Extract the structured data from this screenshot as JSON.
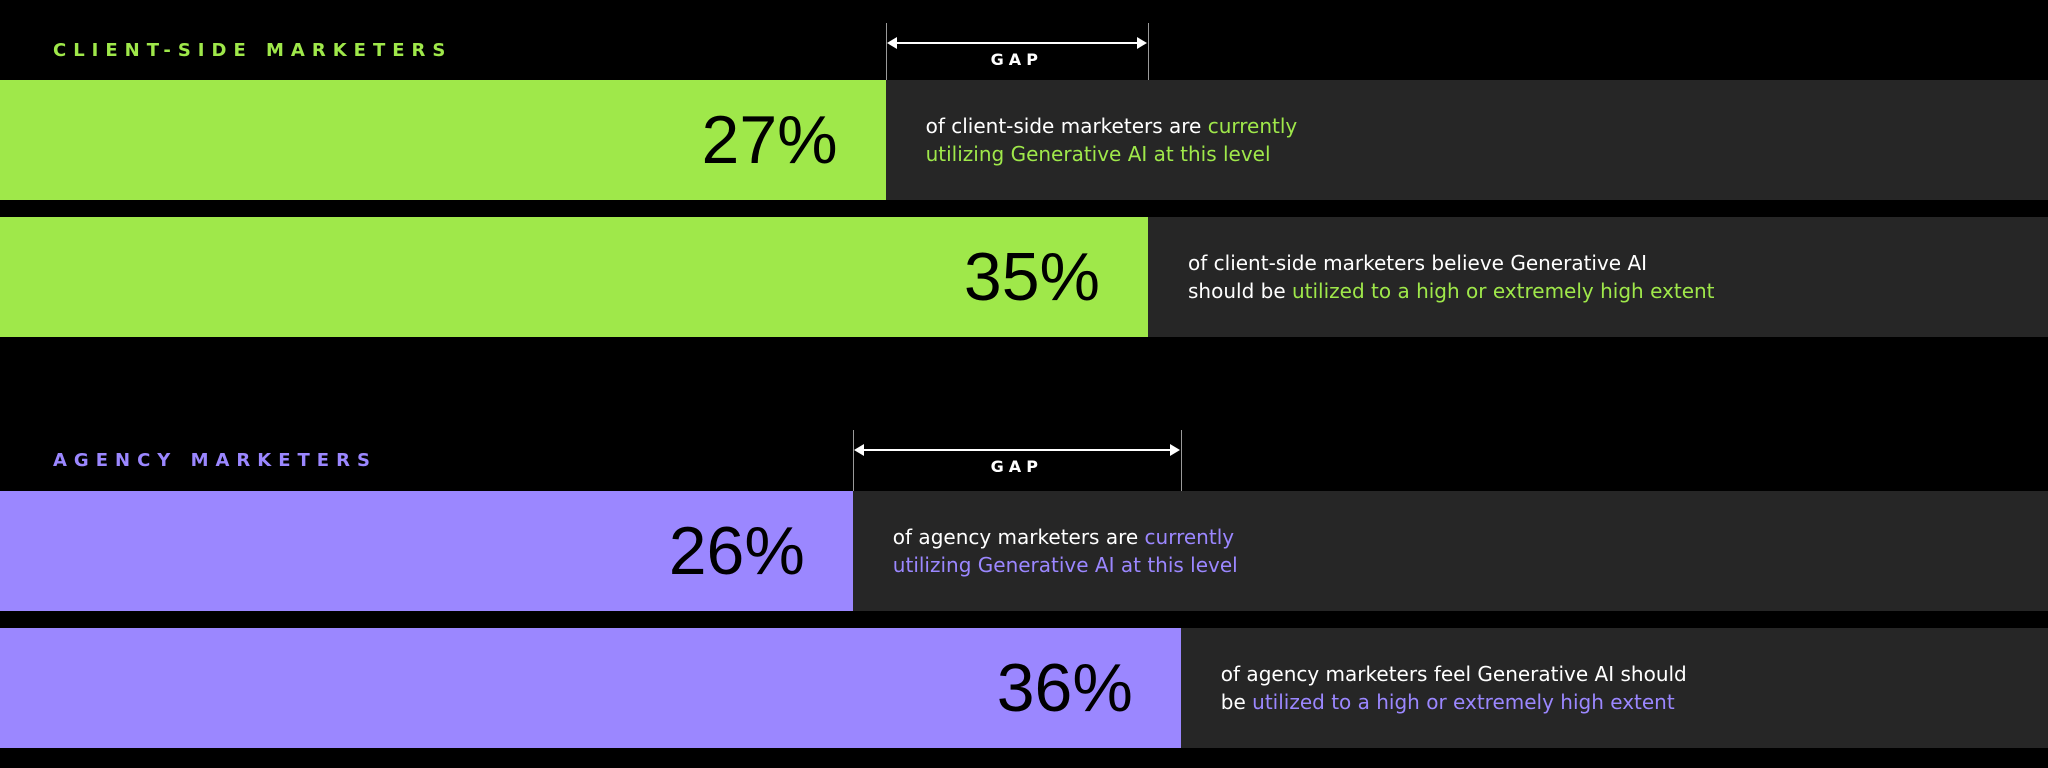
{
  "colors": {
    "client": "#9fe84a",
    "agency": "#9b87ff",
    "track": "#262626",
    "background": "#000000",
    "text": "#ffffff"
  },
  "gap_label": "GAP",
  "chart_data": [
    {
      "type": "bar",
      "orientation": "horizontal",
      "title": "CLIENT-SIDE MARKETERS",
      "accent": "#9fe84a",
      "categories": [
        "currently utilizing",
        "should be utilized"
      ],
      "values": [
        27,
        35
      ],
      "value_labels": [
        "27%",
        "35%"
      ],
      "descriptions": [
        {
          "line1_plain": "of client-side marketers are ",
          "line1_accent": "currently",
          "line2_plain": "",
          "line2_accent": "utilizing Generative AI at this level"
        },
        {
          "line1_plain": "of client-side marketers believe Generative AI",
          "line1_accent": "",
          "line2_plain": "should be ",
          "line2_accent": "utilized to a high or extremely high extent"
        }
      ],
      "annotation": "GAP"
    },
    {
      "type": "bar",
      "orientation": "horizontal",
      "title": "AGENCY MARKETERS",
      "accent": "#9b87ff",
      "categories": [
        "currently utilizing",
        "should be utilized"
      ],
      "values": [
        26,
        36
      ],
      "value_labels": [
        "26%",
        "36%"
      ],
      "descriptions": [
        {
          "line1_plain": "of agency marketers are ",
          "line1_accent": "currently",
          "line2_plain": "",
          "line2_accent": "utilizing Generative AI at this level"
        },
        {
          "line1_plain": "of agency marketers feel Generative AI should",
          "line1_accent": "",
          "line2_plain": "be ",
          "line2_accent": "utilized to a high or extremely high extent"
        }
      ],
      "annotation": "GAP"
    }
  ]
}
